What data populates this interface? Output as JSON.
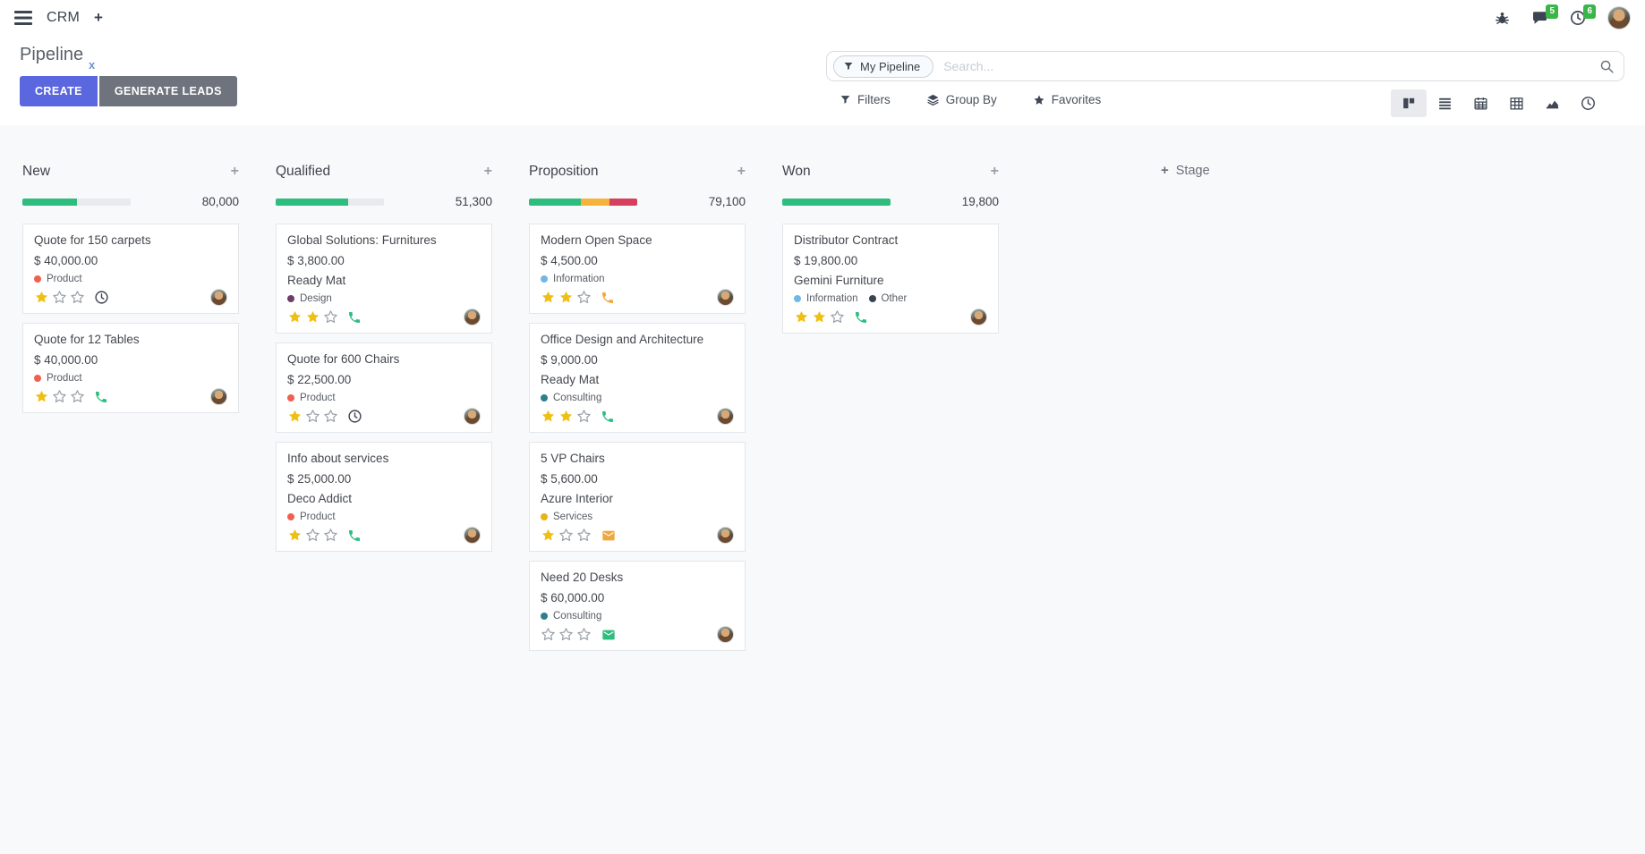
{
  "navbar": {
    "app_name": "CRM",
    "icons": [
      {
        "name": "bug"
      },
      {
        "name": "messages",
        "badge": "5"
      },
      {
        "name": "activities",
        "badge": "6"
      },
      {
        "name": "user-avatar"
      }
    ]
  },
  "page": {
    "title": "Pipeline"
  },
  "actions": {
    "create": "CREATE",
    "generate_leads": "GENERATE LEADS",
    "filters": "Filters",
    "group_by": "Group By",
    "favorites": "Favorites"
  },
  "search": {
    "facet": "My Pipeline",
    "placeholder": "Search...",
    "remove_facet": "x"
  },
  "view_switcher": {
    "active": "kanban",
    "views": [
      "kanban",
      "list",
      "calendar",
      "pivot",
      "graph",
      "activity"
    ]
  },
  "add_stage": {
    "plus": "+",
    "label": "Stage"
  },
  "colors": {
    "primary": "#5a67de",
    "secondary": "#6e737d",
    "badge_green": "#3ab54a",
    "progress_green": "#2ebd7e",
    "progress_orange": "#f5b33b",
    "progress_red": "#d6405b",
    "star_gold": "#efbf13",
    "star_empty": "#99a0a8",
    "track": "#e8eaee"
  },
  "columns": [
    {
      "name": "New",
      "total": "80,000",
      "progress": [
        {
          "color": "#2ebd7e",
          "pct": 50
        }
      ],
      "cards": [
        {
          "title": "Quote for 150 carpets",
          "amount": "$ 40,000.00",
          "company": null,
          "tags": [
            {
              "label": "Product",
              "color": "#f06050"
            }
          ],
          "stars": 1,
          "activity": {
            "icon": "clock",
            "color": "#3e4450"
          }
        },
        {
          "title": "Quote for 12 Tables",
          "amount": "$ 40,000.00",
          "company": null,
          "tags": [
            {
              "label": "Product",
              "color": "#f06050"
            }
          ],
          "stars": 1,
          "activity": {
            "icon": "phone",
            "color": "#2ebd7e"
          }
        }
      ]
    },
    {
      "name": "Qualified",
      "total": "51,300",
      "progress": [
        {
          "color": "#2ebd7e",
          "pct": 67
        }
      ],
      "cards": [
        {
          "title": "Global Solutions: Furnitures",
          "amount": "$ 3,800.00",
          "company": "Ready Mat",
          "tags": [
            {
              "label": "Design",
              "color": "#6c3e66"
            }
          ],
          "stars": 2,
          "activity": {
            "icon": "phone",
            "color": "#2ebd7e"
          }
        },
        {
          "title": "Quote for 600 Chairs",
          "amount": "$ 22,500.00",
          "company": null,
          "tags": [
            {
              "label": "Product",
              "color": "#f06050"
            }
          ],
          "stars": 1,
          "activity": {
            "icon": "clock",
            "color": "#3e4450"
          }
        },
        {
          "title": "Info about services",
          "amount": "$ 25,000.00",
          "company": "Deco Addict",
          "tags": [
            {
              "label": "Product",
              "color": "#f06050"
            }
          ],
          "stars": 1,
          "activity": {
            "icon": "phone",
            "color": "#2ebd7e"
          }
        }
      ]
    },
    {
      "name": "Proposition",
      "total": "79,100",
      "progress": [
        {
          "color": "#2ebd7e",
          "pct": 48
        },
        {
          "color": "#f5b33b",
          "pct": 26
        },
        {
          "color": "#d6405b",
          "pct": 26
        }
      ],
      "cards": [
        {
          "title": "Modern Open Space",
          "amount": "$ 4,500.00",
          "company": null,
          "tags": [
            {
              "label": "Information",
              "color": "#6fb7e8"
            }
          ],
          "stars": 2,
          "activity": {
            "icon": "phone",
            "color": "#f0a73c"
          }
        },
        {
          "title": "Office Design and Architecture",
          "amount": "$ 9,000.00",
          "company": "Ready Mat",
          "tags": [
            {
              "label": "Consulting",
              "color": "#2e7e8f"
            }
          ],
          "stars": 2,
          "activity": {
            "icon": "phone",
            "color": "#2ebd7e"
          }
        },
        {
          "title": "5 VP Chairs",
          "amount": "$ 5,600.00",
          "company": "Azure Interior",
          "tags": [
            {
              "label": "Services",
              "color": "#e7b416"
            }
          ],
          "stars": 1,
          "activity": {
            "icon": "mail",
            "color": "#f0a73c"
          }
        },
        {
          "title": "Need 20 Desks",
          "amount": "$ 60,000.00",
          "company": null,
          "tags": [
            {
              "label": "Consulting",
              "color": "#2e7e8f"
            }
          ],
          "stars": 0,
          "activity": {
            "icon": "mail",
            "color": "#2ebd7e"
          }
        }
      ]
    },
    {
      "name": "Won",
      "total": "19,800",
      "progress": [
        {
          "color": "#2ebd7e",
          "pct": 100
        }
      ],
      "cards": [
        {
          "title": "Distributor Contract",
          "amount": "$ 19,800.00",
          "company": "Gemini Furniture",
          "tags": [
            {
              "label": "Information",
              "color": "#6fb7e8"
            },
            {
              "label": "Other",
              "color": "#3a4352"
            }
          ],
          "stars": 2,
          "activity": {
            "icon": "phone",
            "color": "#2ebd7e"
          }
        }
      ]
    }
  ]
}
